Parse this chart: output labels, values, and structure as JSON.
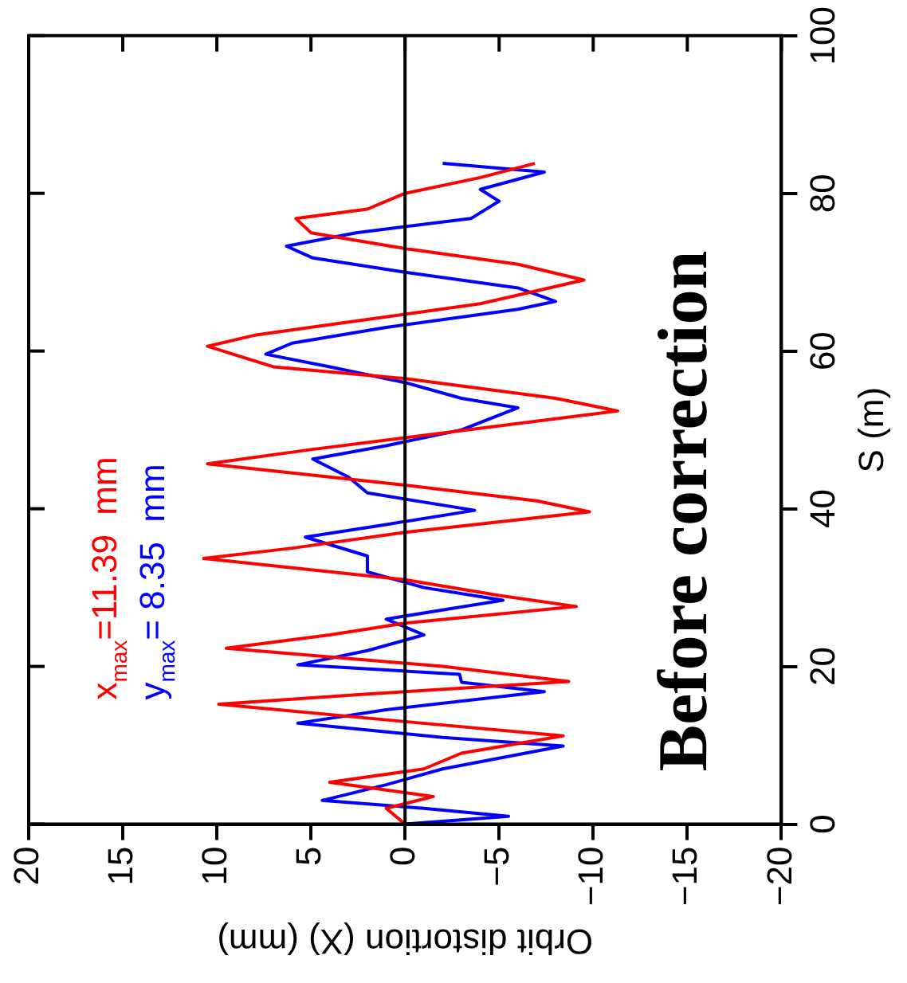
{
  "chart_data": {
    "type": "line",
    "xlabel": "Orbit distortion (X) (mm)",
    "ylabel": "S (m)",
    "annotations": [
      "x$_{max}$=11.39  mm",
      "y$_{max}$= 8.35  mm",
      "Before correction"
    ],
    "ylim": [
      0,
      100
    ],
    "yticks": [
      0,
      20,
      40,
      60,
      80,
      100
    ],
    "xlim": [
      20,
      -20
    ],
    "xticks": [
      20,
      15,
      10,
      5,
      0,
      {
        "value": -5,
        "label": "−5"
      },
      {
        "value": -10,
        "label": "−10"
      },
      {
        "value": -15,
        "label": "−15"
      },
      {
        "value": -20,
        "label": "−20"
      }
    ],
    "ref_lines": [
      {
        "axis": "x",
        "value": 0,
        "color": "#000000"
      }
    ],
    "grid": false,
    "legend": false,
    "marker": "none",
    "line_style": "solid",
    "series": [
      {
        "color": "#ff0000",
        "values": [
          0,
          2,
          3.5,
          5.3,
          7,
          9,
          11.2,
          13,
          15.2,
          16.5,
          18.1,
          20,
          22.3,
          24,
          25.5,
          27.6,
          29,
          31,
          33.7,
          35,
          37,
          39.6,
          41,
          43,
          45.7,
          47.5,
          49,
          52.4,
          54,
          56.5,
          58,
          60.6,
          62,
          64,
          66,
          69,
          71,
          73,
          75,
          76.8,
          78,
          80,
          82,
          83.8
        ],
        "x": [
          0,
          1,
          -1.5,
          4,
          -1,
          -3,
          -8.4,
          0,
          9.9,
          2,
          -8.7,
          -2,
          9.5,
          4,
          0,
          -9.1,
          -5,
          0,
          10.7,
          6,
          0,
          -9.8,
          -7,
          0,
          10.5,
          5,
          0,
          -11.3,
          -8,
          0,
          7,
          10.5,
          8,
          2,
          -4,
          -9.5,
          -6,
          0,
          5,
          5.8,
          2,
          0,
          -4,
          -6.9
        ]
      },
      {
        "color": "#0000ff",
        "values": [
          0,
          1,
          2,
          3,
          5,
          7,
          9.9,
          11,
          12.8,
          14.5,
          16.8,
          18,
          19,
          20.2,
          22,
          24,
          26,
          28.4,
          30,
          32,
          34,
          36.4,
          38,
          39.8,
          42,
          44,
          46.3,
          48,
          50,
          52.8,
          54,
          56,
          58,
          59.6,
          61,
          63,
          65.3,
          66.3,
          68,
          70,
          71.8,
          73.3,
          75,
          76.8,
          79,
          80.5,
          82.7,
          83.8
        ],
        "x": [
          0,
          -5.5,
          -1,
          4.4,
          1,
          -2,
          -8.4,
          -2,
          5.7,
          1,
          -7.4,
          -3,
          -2.9,
          5.7,
          2,
          -1,
          1,
          -5.2,
          -1,
          2,
          2,
          5.3,
          1,
          -3.7,
          2,
          3,
          4.9,
          1,
          -3,
          -6,
          -3,
          0,
          4,
          7.4,
          6,
          1,
          -6,
          -8,
          -6,
          0,
          4.9,
          6.3,
          2.6,
          -3.5,
          -5,
          -4,
          -7.4,
          -2
        ]
      }
    ]
  }
}
